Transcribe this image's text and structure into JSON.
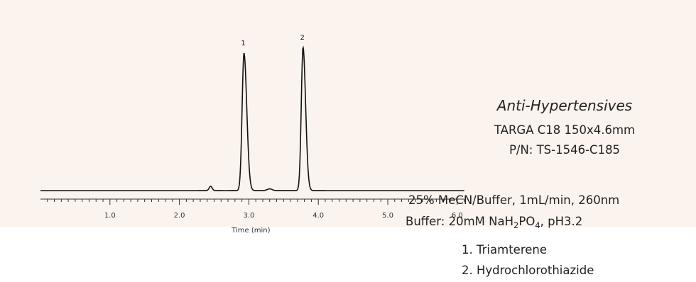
{
  "chart_data": {
    "type": "line",
    "title": "",
    "xlabel": "Time (min)",
    "ylabel": "",
    "xlim": [
      0,
      6.1
    ],
    "ylim": [
      0,
      100
    ],
    "x_ticks": [
      "1.0",
      "2.0",
      "3.0",
      "4.0",
      "5.0",
      "6.0"
    ],
    "grid": false,
    "series": [
      {
        "name": "",
        "x": [
          0.0,
          2.2,
          2.45,
          2.7,
          2.85,
          2.93,
          3.05,
          3.3,
          3.6,
          3.72,
          3.78,
          3.9,
          4.2,
          6.1
        ],
        "y": [
          0,
          0.5,
          3,
          1.5,
          30,
          96,
          22,
          1.5,
          2,
          40,
          100,
          12,
          0.5,
          0
        ]
      }
    ],
    "peaks": [
      {
        "label": "1",
        "time": 2.93,
        "height": 96
      },
      {
        "label": "2",
        "time": 3.78,
        "height": 100
      }
    ]
  },
  "method": {
    "title": "Anti-Hypertensives",
    "column": "TARGA C18   150x4.6mm",
    "part_number": "P/N: TS-1546-C185",
    "mobile_phase": "25% MeCN/Buffer, 1mL/min, 260nm",
    "buffer_prefix": "Buffer: 20mM  NaH",
    "buffer_sub1": "2",
    "buffer_mid": "PO",
    "buffer_sub2": "4",
    "buffer_suffix": ", pH3.2",
    "peak1": "1. Triamterene",
    "peak2": "2. Hydrochlorothiazide"
  }
}
